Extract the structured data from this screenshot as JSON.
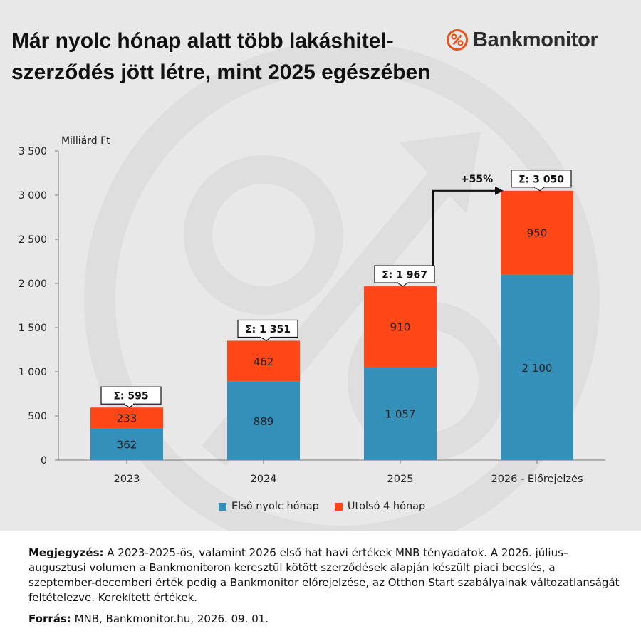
{
  "header": {
    "title": "Már nyolc hónap alatt több lakáshitel-szerződés jött létre, mint 2025 egészében",
    "brand": "Bankmonitor",
    "brand_icon": "percent-circle-icon",
    "brand_color": "#e8541f"
  },
  "chart_data": {
    "type": "bar",
    "stacked": true,
    "ylabel": "Milliárd Ft",
    "ylim": [
      0,
      3500
    ],
    "yticks": [
      0,
      500,
      1000,
      1500,
      2000,
      2500,
      3000,
      3500
    ],
    "ytick_labels": [
      "0",
      "500",
      "1 000",
      "1 500",
      "2 000",
      "2 500",
      "3 000",
      "3 500"
    ],
    "categories": [
      "2023",
      "2024",
      "2025",
      "2026 - Előrejelzés"
    ],
    "series": [
      {
        "name": "Első nyolc hónap",
        "color": "#3590b9",
        "values": [
          362,
          889,
          1057,
          2100
        ],
        "labels": [
          "362",
          "889",
          "1 057",
          "2 100"
        ]
      },
      {
        "name": "Utolsó 4 hónap",
        "color": "#ff4616",
        "values": [
          233,
          462,
          910,
          950
        ],
        "labels": [
          "233",
          "462",
          "910",
          "950"
        ]
      }
    ],
    "totals": [
      595,
      1351,
      1967,
      3050
    ],
    "total_labels": [
      "Σ:  595",
      "Σ: 1 351",
      "Σ: 1 967",
      "Σ: 3 050"
    ],
    "annotation": {
      "text": "+55%",
      "from": "2025",
      "to": "2026 - Előrejelzés"
    },
    "legend_position": "bottom",
    "grid": false
  },
  "notes": {
    "note_label": "Megjegyzés:",
    "note_text": " A 2023-2025-ös, valamint 2026 első hat havi értékek MNB tényadatok. A 2026. július–augusztusi volumen a Bankmonitoron keresztül kötött szerződések alapján készült piaci becslés, a szeptember-decemberi érték pedig a Bankmonitor előrejelzése, az Otthon Start szabályainak változatlanságát feltételezve. Kerekített értékek.",
    "source_label": "Forrás:",
    "source_text": " MNB, Bankmonitor.hu, 2026. 09. 01."
  }
}
